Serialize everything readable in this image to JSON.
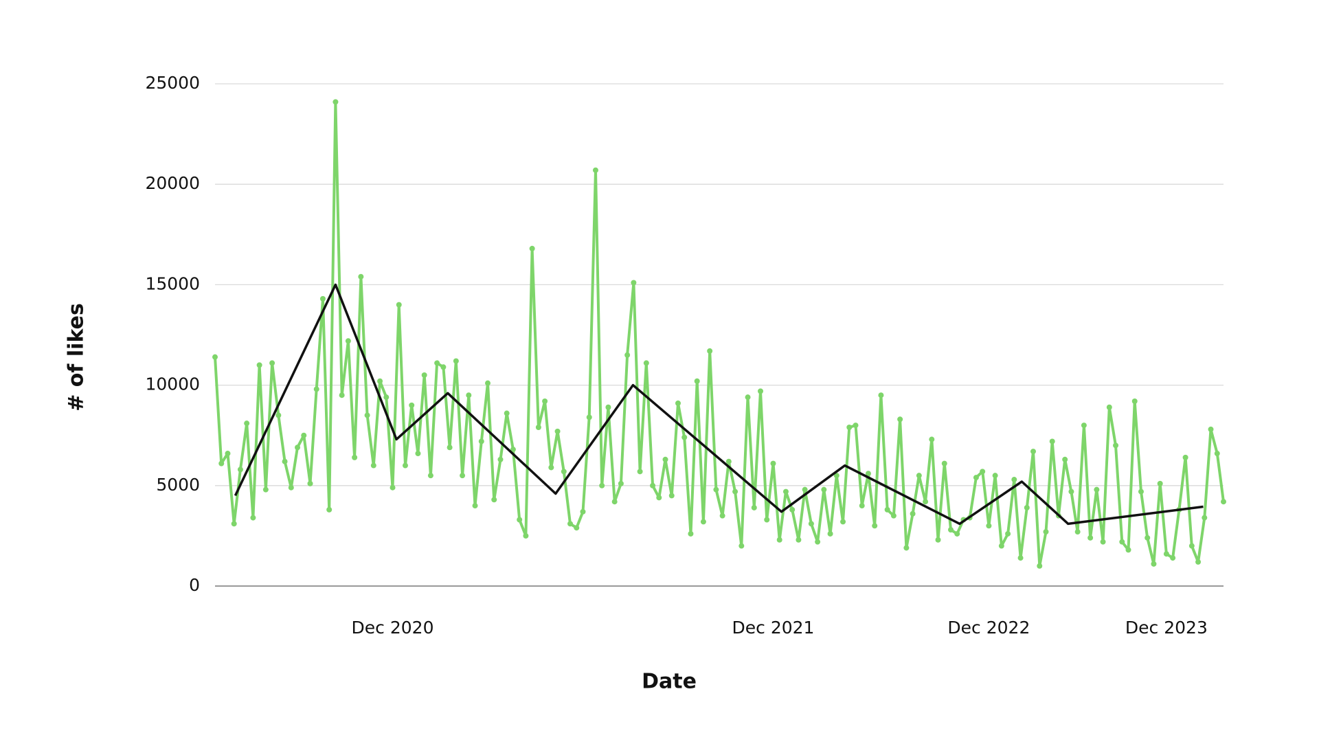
{
  "chart_data": {
    "type": "line",
    "xlabel": "Date",
    "ylabel": "# of likes",
    "xlim": [
      0,
      159
    ],
    "ylim": [
      0,
      25000
    ],
    "xticks": [
      {
        "value": 28,
        "label": "Dec 2020"
      },
      {
        "value": 88,
        "label": "Dec 2021"
      },
      {
        "value": 122,
        "label": "Dec 2022"
      },
      {
        "value": 150,
        "label": "Dec 2023"
      }
    ],
    "yticks": [
      0,
      5000,
      10000,
      15000,
      20000,
      25000
    ],
    "grid": true,
    "series": [
      {
        "color": "#7ed56a",
        "markers": true,
        "x": [
          0,
          1,
          2,
          3,
          4,
          5,
          6,
          7,
          8,
          9,
          10,
          11,
          12,
          13,
          14,
          15,
          16,
          17,
          18,
          19,
          20,
          21,
          22,
          23,
          24,
          25,
          26,
          27,
          28,
          29,
          30,
          31,
          32,
          33,
          34,
          35,
          36,
          37,
          38,
          39,
          40,
          41,
          42,
          43,
          44,
          45,
          46,
          47,
          48,
          49,
          50,
          51,
          52,
          53,
          54,
          55,
          56,
          57,
          58,
          59,
          60,
          61,
          62,
          63,
          64,
          65,
          66,
          67,
          68,
          69,
          70,
          71,
          72,
          73,
          74,
          75,
          76,
          77,
          78,
          79,
          80,
          81,
          82,
          83,
          84,
          85,
          86,
          87,
          88,
          89,
          90,
          91,
          92,
          93,
          94,
          95,
          96,
          97,
          98,
          99,
          100,
          101,
          102,
          103,
          104,
          105,
          106,
          107,
          108,
          109,
          110,
          111,
          112,
          113,
          114,
          115,
          116,
          117,
          118,
          119,
          120,
          121,
          122,
          123,
          124,
          125,
          126,
          127,
          128,
          129,
          130,
          131,
          132,
          133,
          134,
          135,
          136,
          137,
          138,
          139,
          140,
          141,
          142,
          143,
          144,
          145,
          146,
          147,
          148,
          149,
          150,
          151,
          152,
          153,
          154,
          155,
          156,
          157,
          158,
          159
        ],
        "values": [
          11400,
          6100,
          6600,
          3100,
          5800,
          8100,
          3400,
          11000,
          4800,
          11100,
          8500,
          6200,
          4900,
          6900,
          7500,
          5100,
          9800,
          14300,
          3800,
          24100,
          9500,
          12200,
          6400,
          15400,
          8500,
          6000,
          10200,
          9400,
          4900,
          14000,
          6000,
          9000,
          6600,
          10500,
          5500,
          11100,
          10900,
          6900,
          11200,
          5500,
          9500,
          4000,
          7200,
          10100,
          4300,
          6300,
          8600,
          6800,
          3300,
          2500,
          16800,
          7900,
          9200,
          5900,
          7700,
          5700,
          3100,
          2900,
          3700,
          8400,
          20700,
          5000,
          8900,
          4200,
          5100,
          11500,
          15100,
          5700,
          11100,
          5000,
          4400,
          6300,
          4500,
          9100,
          7400,
          2600,
          10200,
          3200,
          11700,
          4800,
          3500,
          6200,
          4700,
          2000,
          9400,
          3900,
          9700,
          3300,
          6100,
          2300,
          4700,
          3800,
          2300,
          4800,
          3100,
          2200,
          4800,
          2600,
          5500,
          3200,
          7900,
          8000,
          4000,
          5600,
          3000,
          9500,
          3800,
          3500,
          8300,
          1900,
          3600,
          5500,
          4200,
          7300,
          2300,
          6100,
          2800,
          2600,
          3300,
          3400,
          5400,
          5700,
          3000,
          5500,
          2000,
          2600,
          5300,
          1400,
          3900,
          6700,
          1000,
          2700,
          7200,
          3500,
          6300,
          4700,
          2700,
          8000,
          2400,
          4800,
          2200,
          8900,
          7000,
          2200,
          1800,
          9200,
          4700,
          2400,
          1100,
          5100,
          1600,
          1400,
          3800,
          6400,
          2000,
          1200,
          3400,
          7800,
          6600,
          4200
        ]
      },
      {
        "color": "#111111",
        "markers": false,
        "x": [
          3.2,
          19,
          28.6,
          36.7,
          53.7,
          65.9,
          89.3,
          99.3,
          117.4,
          127.2,
          134.5,
          155.8
        ],
        "values": [
          4500,
          15000,
          7300,
          9600,
          4600,
          10000,
          3700,
          6000,
          3100,
          5200,
          3100,
          3950
        ]
      }
    ]
  }
}
